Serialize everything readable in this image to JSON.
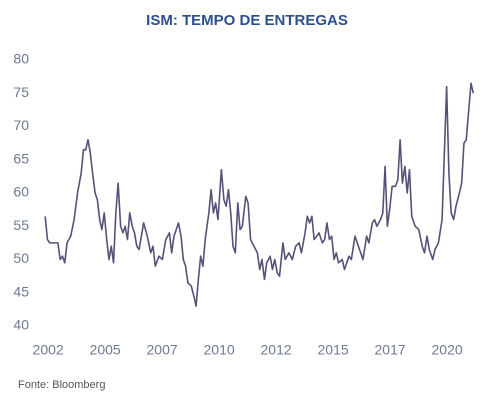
{
  "chart_data": {
    "type": "line",
    "title": "ISM: TEMPO DE ENTREGAS",
    "source": "Fonte: Bloomberg",
    "x": [
      2001.87,
      2001.97,
      2002.07,
      2002.27,
      2002.43,
      2002.53,
      2002.63,
      2002.73,
      2002.83,
      2002.99,
      2003.14,
      2003.29,
      2003.45,
      2003.55,
      2003.65,
      2003.75,
      2003.85,
      2003.95,
      2004.06,
      2004.16,
      2004.26,
      2004.36,
      2004.46,
      2004.57,
      2004.67,
      2004.77,
      2004.87,
      2004.97,
      2005.07,
      2005.18,
      2005.28,
      2005.38,
      2005.48,
      2005.58,
      2005.69,
      2005.79,
      2005.89,
      2005.99,
      2006.19,
      2006.35,
      2006.5,
      2006.6,
      2006.7,
      2006.86,
      2007.01,
      2007.16,
      2007.32,
      2007.42,
      2007.52,
      2007.72,
      2007.83,
      2007.93,
      2008.03,
      2008.13,
      2008.28,
      2008.39,
      2008.49,
      2008.59,
      2008.69,
      2008.79,
      2008.89,
      2009.05,
      2009.15,
      2009.25,
      2009.35,
      2009.45,
      2009.55,
      2009.6,
      2009.71,
      2009.81,
      2009.91,
      2010.01,
      2010.11,
      2010.21,
      2010.32,
      2010.42,
      2010.52,
      2010.67,
      2010.77,
      2010.88,
      2011.03,
      2011.18,
      2011.28,
      2011.38,
      2011.49,
      2011.59,
      2011.74,
      2011.84,
      2011.94,
      2012.05,
      2012.15,
      2012.3,
      2012.4,
      2012.56,
      2012.71,
      2012.86,
      2013.01,
      2013.11,
      2013.27,
      2013.37,
      2013.47,
      2013.57,
      2013.67,
      2013.78,
      2013.88,
      2014.03,
      2014.13,
      2014.23,
      2014.34,
      2014.44,
      2014.54,
      2014.64,
      2014.74,
      2014.9,
      2015.0,
      2015.1,
      2015.2,
      2015.3,
      2015.46,
      2015.56,
      2015.71,
      2015.81,
      2015.97,
      2016.07,
      2016.22,
      2016.32,
      2016.42,
      2016.58,
      2016.68,
      2016.78,
      2016.88,
      2016.98,
      2017.09,
      2017.24,
      2017.34,
      2017.44,
      2017.54,
      2017.65,
      2017.75,
      2017.85,
      2017.95,
      2018.1,
      2018.26,
      2018.41,
      2018.51,
      2018.62,
      2018.72,
      2018.87,
      2018.97,
      2019.12,
      2019.28,
      2019.38,
      2019.48,
      2019.58,
      2019.68,
      2019.79,
      2019.89,
      2020.04,
      2020.14,
      2020.24,
      2020.34,
      2020.45,
      2020.55,
      2020.65
    ],
    "series": [
      {
        "color": "#55527a",
        "values": [
          56.5,
          53,
          52.5,
          52.5,
          52.5,
          50,
          50.5,
          49.5,
          52.5,
          53.5,
          56,
          60,
          63,
          66.5,
          66.5,
          68,
          66,
          63,
          60,
          59,
          56,
          54.5,
          57,
          53,
          50,
          52,
          49.5,
          57,
          61.5,
          55,
          54,
          55,
          53,
          57,
          55,
          54,
          52,
          51.5,
          55.5,
          53.5,
          51,
          52,
          49,
          50.5,
          50,
          53,
          54,
          51,
          53.5,
          55.5,
          53.5,
          50,
          49,
          46.5,
          46,
          44.5,
          43,
          47,
          50.5,
          49,
          53,
          57,
          60.5,
          57,
          58.5,
          56,
          61,
          63.5,
          59,
          58,
          60.5,
          57,
          52,
          51,
          58.5,
          54.5,
          55,
          59.5,
          58.5,
          53,
          52,
          51,
          48.5,
          50,
          47,
          49.5,
          50.5,
          48.5,
          50,
          48,
          47.5,
          52.5,
          50,
          51,
          50,
          52,
          52.5,
          51,
          54,
          56.5,
          55.5,
          56.5,
          53,
          53.5,
          54,
          52.5,
          53,
          55.5,
          53,
          53.5,
          50,
          51,
          49.5,
          50,
          48.5,
          49.5,
          50.5,
          50,
          53.5,
          52.5,
          51,
          50,
          53.5,
          52.5,
          55.5,
          56,
          55,
          56,
          57,
          64,
          55,
          57.5,
          61,
          61,
          62,
          68,
          61.5,
          64,
          60,
          63.5,
          56.5,
          55,
          54.5,
          52,
          51,
          53.5,
          51.5,
          50,
          51.5,
          52.5,
          56,
          66,
          76,
          63,
          57,
          56,
          58,
          60,
          61.5,
          67.5,
          68,
          72.5,
          76.5,
          75
        ]
      }
    ],
    "xlim": [
      2001.6,
      2020.9
    ],
    "xticks": [
      {
        "value": 2002,
        "label": "2002"
      },
      {
        "value": 2004.5,
        "label": "2005"
      },
      {
        "value": 2007,
        "label": "2007"
      },
      {
        "value": 2009.5,
        "label": "2010"
      },
      {
        "value": 2012,
        "label": "2012"
      },
      {
        "value": 2014.5,
        "label": "2015"
      },
      {
        "value": 2017,
        "label": "2017"
      },
      {
        "value": 2019.5,
        "label": "2020"
      }
    ],
    "ylim": [
      38,
      82
    ],
    "yticks": [
      40,
      45,
      50,
      55,
      60,
      65,
      70,
      75,
      80
    ],
    "grid": false
  }
}
